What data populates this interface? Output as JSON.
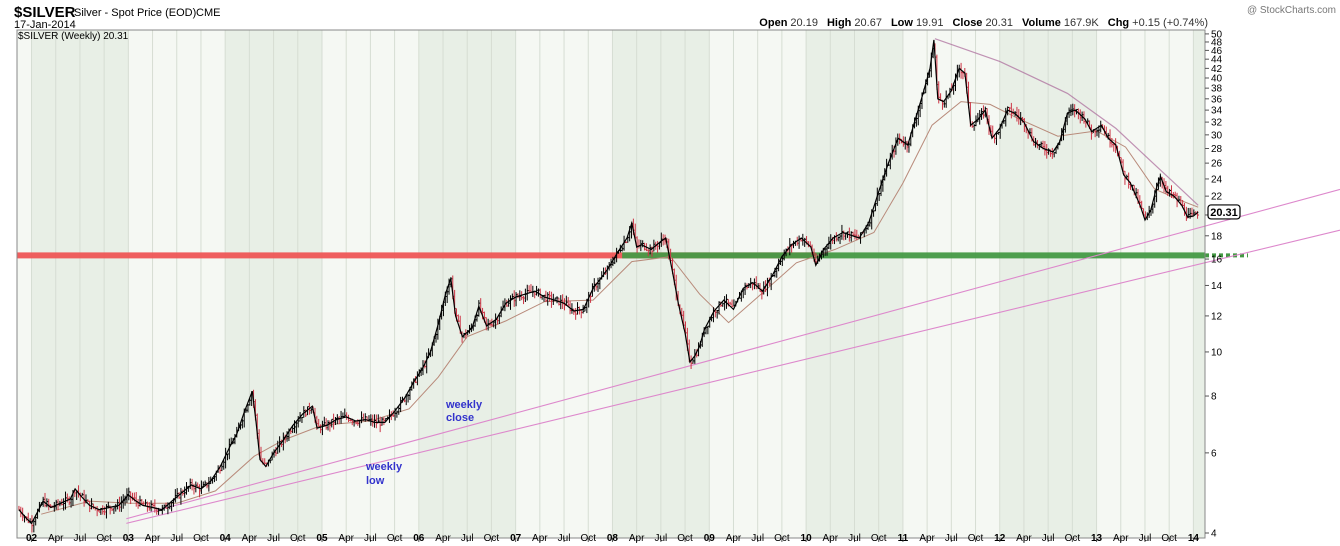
{
  "header": {
    "symbol": "$SILVER",
    "name": "Silver - Spot Price (EOD)",
    "exchange": "CME",
    "date": "17-Jan-2014",
    "watermark": "@ StockCharts.com",
    "ohlc": [
      {
        "label": "Open",
        "value": "20.19"
      },
      {
        "label": "High",
        "value": "20.67"
      },
      {
        "label": "Low",
        "value": "19.91"
      },
      {
        "label": "Close",
        "value": "20.31"
      },
      {
        "label": "Volume",
        "value": "167.9K"
      },
      {
        "label": "Chg",
        "value": "+0.15 (+0.74%)"
      }
    ],
    "legend": "$SILVER (Weekly) 20.31"
  },
  "annotations": {
    "close_line1": "weekly",
    "close_line2": "close",
    "low_line1": "weekly",
    "low_line2": "low"
  },
  "colors": {
    "plot_bg_a": "#e8efe6",
    "plot_bg_b": "#f5f8f3",
    "bar": "#000000",
    "bar_down": "#cc3344",
    "ma": "#b88a7a",
    "trendline": "#dd88cc",
    "resistance": "#aa6699",
    "red_band": "#ee5555",
    "green_band": "#449944",
    "annotation": "#3333cc"
  },
  "chart_data": {
    "type": "line",
    "scale": "log",
    "frequency": "weekly",
    "ylim": [
      3.9,
      51
    ],
    "xlim": [
      2001.85,
      2014.12
    ],
    "ytick_values": [
      4,
      6,
      8,
      10,
      12,
      14,
      16,
      18,
      20,
      22,
      24,
      26,
      28,
      30,
      32,
      34,
      36,
      38,
      40,
      42,
      44,
      46,
      48,
      50
    ],
    "last_price_label": "20.31",
    "xticks": [
      {
        "x": 2002.0,
        "label": "02",
        "year": true
      },
      {
        "x": 2002.25,
        "label": "Apr"
      },
      {
        "x": 2002.5,
        "label": "Jul"
      },
      {
        "x": 2002.75,
        "label": "Oct"
      },
      {
        "x": 2003.0,
        "label": "03",
        "year": true
      },
      {
        "x": 2003.25,
        "label": "Apr"
      },
      {
        "x": 2003.5,
        "label": "Jul"
      },
      {
        "x": 2003.75,
        "label": "Oct"
      },
      {
        "x": 2004.0,
        "label": "04",
        "year": true
      },
      {
        "x": 2004.25,
        "label": "Apr"
      },
      {
        "x": 2004.5,
        "label": "Jul"
      },
      {
        "x": 2004.75,
        "label": "Oct"
      },
      {
        "x": 2005.0,
        "label": "05",
        "year": true
      },
      {
        "x": 2005.25,
        "label": "Apr"
      },
      {
        "x": 2005.5,
        "label": "Jul"
      },
      {
        "x": 2005.75,
        "label": "Oct"
      },
      {
        "x": 2006.0,
        "label": "06",
        "year": true
      },
      {
        "x": 2006.25,
        "label": "Apr"
      },
      {
        "x": 2006.5,
        "label": "Jul"
      },
      {
        "x": 2006.75,
        "label": "Oct"
      },
      {
        "x": 2007.0,
        "label": "07",
        "year": true
      },
      {
        "x": 2007.25,
        "label": "Apr"
      },
      {
        "x": 2007.5,
        "label": "Jul"
      },
      {
        "x": 2007.75,
        "label": "Oct"
      },
      {
        "x": 2008.0,
        "label": "08",
        "year": true
      },
      {
        "x": 2008.25,
        "label": "Apr"
      },
      {
        "x": 2008.5,
        "label": "Jul"
      },
      {
        "x": 2008.75,
        "label": "Oct"
      },
      {
        "x": 2009.0,
        "label": "09",
        "year": true
      },
      {
        "x": 2009.25,
        "label": "Apr"
      },
      {
        "x": 2009.5,
        "label": "Jul"
      },
      {
        "x": 2009.75,
        "label": "Oct"
      },
      {
        "x": 2010.0,
        "label": "10",
        "year": true
      },
      {
        "x": 2010.25,
        "label": "Apr"
      },
      {
        "x": 2010.5,
        "label": "Jul"
      },
      {
        "x": 2010.75,
        "label": "Oct"
      },
      {
        "x": 2011.0,
        "label": "11",
        "year": true
      },
      {
        "x": 2011.25,
        "label": "Apr"
      },
      {
        "x": 2011.5,
        "label": "Jul"
      },
      {
        "x": 2011.75,
        "label": "Oct"
      },
      {
        "x": 2012.0,
        "label": "12",
        "year": true
      },
      {
        "x": 2012.25,
        "label": "Apr"
      },
      {
        "x": 2012.5,
        "label": "Jul"
      },
      {
        "x": 2012.75,
        "label": "Oct"
      },
      {
        "x": 2013.0,
        "label": "13",
        "year": true
      },
      {
        "x": 2013.25,
        "label": "Apr"
      },
      {
        "x": 2013.5,
        "label": "Jul"
      },
      {
        "x": 2013.75,
        "label": "Oct"
      },
      {
        "x": 2014.0,
        "label": "14",
        "year": true
      }
    ],
    "price_path": [
      [
        2001.87,
        4.5
      ],
      [
        2001.95,
        4.3
      ],
      [
        2002.0,
        4.2
      ],
      [
        2002.05,
        4.4
      ],
      [
        2002.12,
        4.7
      ],
      [
        2002.2,
        4.55
      ],
      [
        2002.3,
        4.65
      ],
      [
        2002.4,
        4.75
      ],
      [
        2002.45,
        5.0
      ],
      [
        2002.5,
        4.85
      ],
      [
        2002.6,
        4.6
      ],
      [
        2002.7,
        4.5
      ],
      [
        2002.8,
        4.55
      ],
      [
        2002.9,
        4.6
      ],
      [
        2003.0,
        4.85
      ],
      [
        2003.08,
        4.7
      ],
      [
        2003.15,
        4.6
      ],
      [
        2003.25,
        4.55
      ],
      [
        2003.35,
        4.5
      ],
      [
        2003.45,
        4.7
      ],
      [
        2003.55,
        4.9
      ],
      [
        2003.65,
        5.1
      ],
      [
        2003.75,
        5.0
      ],
      [
        2003.85,
        5.2
      ],
      [
        2003.95,
        5.6
      ],
      [
        2004.05,
        6.2
      ],
      [
        2004.12,
        6.6
      ],
      [
        2004.2,
        7.4
      ],
      [
        2004.28,
        8.2
      ],
      [
        2004.32,
        7.0
      ],
      [
        2004.36,
        5.8
      ],
      [
        2004.42,
        5.6
      ],
      [
        2004.5,
        6.0
      ],
      [
        2004.6,
        6.4
      ],
      [
        2004.7,
        6.9
      ],
      [
        2004.8,
        7.3
      ],
      [
        2004.9,
        7.6
      ],
      [
        2004.95,
        6.8
      ],
      [
        2005.05,
        6.9
      ],
      [
        2005.15,
        7.1
      ],
      [
        2005.25,
        7.2
      ],
      [
        2005.35,
        7.05
      ],
      [
        2005.45,
        7.1
      ],
      [
        2005.55,
        7.0
      ],
      [
        2005.65,
        7.0
      ],
      [
        2005.75,
        7.4
      ],
      [
        2005.85,
        7.9
      ],
      [
        2005.95,
        8.6
      ],
      [
        2006.05,
        9.3
      ],
      [
        2006.12,
        10.0
      ],
      [
        2006.2,
        11.5
      ],
      [
        2006.28,
        13.5
      ],
      [
        2006.33,
        14.5
      ],
      [
        2006.38,
        12.0
      ],
      [
        2006.45,
        10.8
      ],
      [
        2006.55,
        11.3
      ],
      [
        2006.62,
        12.6
      ],
      [
        2006.7,
        11.4
      ],
      [
        2006.8,
        11.8
      ],
      [
        2006.9,
        12.8
      ],
      [
        2007.0,
        13.2
      ],
      [
        2007.1,
        13.4
      ],
      [
        2007.2,
        13.6
      ],
      [
        2007.3,
        13.2
      ],
      [
        2007.4,
        13.0
      ],
      [
        2007.5,
        12.8
      ],
      [
        2007.6,
        12.3
      ],
      [
        2007.7,
        12.4
      ],
      [
        2007.8,
        13.8
      ],
      [
        2007.88,
        14.5
      ],
      [
        2007.95,
        15.2
      ],
      [
        2008.05,
        16.5
      ],
      [
        2008.15,
        17.8
      ],
      [
        2008.2,
        19.2
      ],
      [
        2008.25,
        17.0
      ],
      [
        2008.3,
        17.2
      ],
      [
        2008.4,
        16.8
      ],
      [
        2008.5,
        17.5
      ],
      [
        2008.55,
        17.8
      ],
      [
        2008.62,
        15.0
      ],
      [
        2008.68,
        12.8
      ],
      [
        2008.75,
        11.0
      ],
      [
        2008.8,
        9.5
      ],
      [
        2008.85,
        9.8
      ],
      [
        2008.9,
        10.3
      ],
      [
        2008.95,
        11.2
      ],
      [
        2009.05,
        12.3
      ],
      [
        2009.15,
        13.0
      ],
      [
        2009.25,
        12.4
      ],
      [
        2009.35,
        13.8
      ],
      [
        2009.45,
        14.2
      ],
      [
        2009.55,
        13.6
      ],
      [
        2009.65,
        14.7
      ],
      [
        2009.75,
        16.2
      ],
      [
        2009.85,
        17.2
      ],
      [
        2009.95,
        17.8
      ],
      [
        2010.05,
        17.0
      ],
      [
        2010.1,
        15.5
      ],
      [
        2010.18,
        16.8
      ],
      [
        2010.28,
        17.8
      ],
      [
        2010.38,
        18.3
      ],
      [
        2010.48,
        18.0
      ],
      [
        2010.55,
        17.8
      ],
      [
        2010.65,
        19.3
      ],
      [
        2010.75,
        22.5
      ],
      [
        2010.85,
        26.0
      ],
      [
        2010.95,
        29.5
      ],
      [
        2011.05,
        28.5
      ],
      [
        2011.12,
        32.0
      ],
      [
        2011.2,
        36.5
      ],
      [
        2011.28,
        42.0
      ],
      [
        2011.32,
        48.5
      ],
      [
        2011.36,
        36.0
      ],
      [
        2011.42,
        35.5
      ],
      [
        2011.5,
        37.5
      ],
      [
        2011.58,
        42.0
      ],
      [
        2011.64,
        41.0
      ],
      [
        2011.7,
        31.5
      ],
      [
        2011.78,
        32.5
      ],
      [
        2011.85,
        34.0
      ],
      [
        2011.92,
        29.5
      ],
      [
        2012.0,
        31.0
      ],
      [
        2012.08,
        34.0
      ],
      [
        2012.15,
        33.5
      ],
      [
        2012.25,
        32.0
      ],
      [
        2012.35,
        29.0
      ],
      [
        2012.45,
        28.0
      ],
      [
        2012.55,
        27.5
      ],
      [
        2012.62,
        29.0
      ],
      [
        2012.7,
        33.5
      ],
      [
        2012.78,
        34.0
      ],
      [
        2012.88,
        32.5
      ],
      [
        2012.95,
        30.5
      ],
      [
        2013.05,
        31.5
      ],
      [
        2013.12,
        29.5
      ],
      [
        2013.2,
        28.5
      ],
      [
        2013.28,
        24.5
      ],
      [
        2013.35,
        23.5
      ],
      [
        2013.45,
        21.0
      ],
      [
        2013.5,
        19.5
      ],
      [
        2013.56,
        20.5
      ],
      [
        2013.62,
        23.0
      ],
      [
        2013.66,
        24.3
      ],
      [
        2013.72,
        22.5
      ],
      [
        2013.8,
        22.0
      ],
      [
        2013.88,
        21.0
      ],
      [
        2013.94,
        19.8
      ],
      [
        2014.0,
        19.9
      ],
      [
        2014.05,
        20.31
      ]
    ],
    "moving_average_path": [
      [
        2002.1,
        4.4
      ],
      [
        2002.6,
        4.7
      ],
      [
        2003.0,
        4.65
      ],
      [
        2003.5,
        4.65
      ],
      [
        2003.9,
        4.95
      ],
      [
        2004.3,
        5.9
      ],
      [
        2004.6,
        6.4
      ],
      [
        2005.0,
        6.9
      ],
      [
        2005.5,
        7.05
      ],
      [
        2005.9,
        7.5
      ],
      [
        2006.2,
        8.8
      ],
      [
        2006.5,
        10.8
      ],
      [
        2006.9,
        11.7
      ],
      [
        2007.3,
        12.9
      ],
      [
        2007.8,
        13.0
      ],
      [
        2008.2,
        15.8
      ],
      [
        2008.6,
        16.2
      ],
      [
        2008.9,
        13.4
      ],
      [
        2009.2,
        11.6
      ],
      [
        2009.5,
        13.2
      ],
      [
        2009.9,
        15.7
      ],
      [
        2010.3,
        16.8
      ],
      [
        2010.7,
        18.3
      ],
      [
        2011.0,
        23.5
      ],
      [
        2011.3,
        31.5
      ],
      [
        2011.6,
        35.5
      ],
      [
        2011.9,
        35.0
      ],
      [
        2012.2,
        32.5
      ],
      [
        2012.6,
        29.8
      ],
      [
        2013.0,
        30.6
      ],
      [
        2013.3,
        28.2
      ],
      [
        2013.6,
        22.8
      ],
      [
        2013.9,
        21.4
      ],
      [
        2014.05,
        20.8
      ]
    ],
    "weekly_close_trendline": [
      [
        2003.0,
        4.3
      ],
      [
        2014.12,
        18.9
      ]
    ],
    "weekly_low_trendline": [
      [
        2003.0,
        4.2
      ],
      [
        2014.12,
        15.7
      ]
    ],
    "resistance_arc": [
      [
        2011.33,
        48.8
      ],
      [
        2012.0,
        43.5
      ],
      [
        2012.7,
        37.0
      ],
      [
        2013.2,
        31.0
      ],
      [
        2013.6,
        25.8
      ],
      [
        2013.9,
        22.5
      ],
      [
        2014.05,
        21.0
      ]
    ],
    "horizontal_bands": [
      {
        "color": "red",
        "y": 16.3,
        "x_start": 2001.85,
        "x_end": 2010.1
      },
      {
        "color": "green",
        "y": 16.3,
        "x_start": 2008.1,
        "x_end": 2014.12
      }
    ]
  }
}
